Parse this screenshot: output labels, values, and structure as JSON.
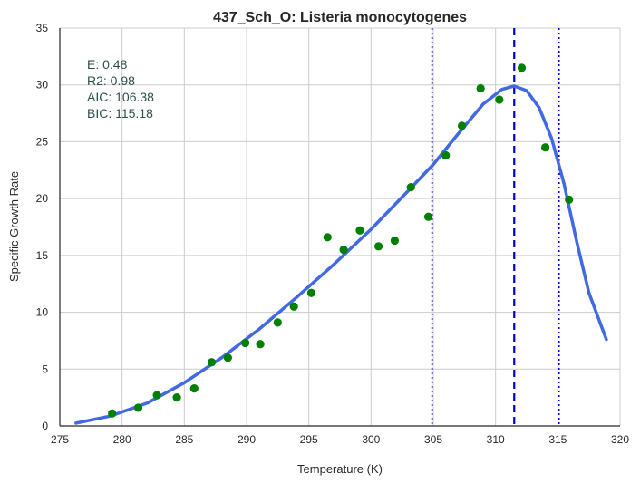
{
  "chart_data": {
    "type": "scatter",
    "title": "437_Sch_O: Listeria monocytogenes",
    "xlabel": "Temperature (K)",
    "ylabel": "Specific Growth Rate",
    "xlim": [
      275,
      320
    ],
    "ylim": [
      0,
      35
    ],
    "xticks": [
      "275",
      "280",
      "285",
      "290",
      "295",
      "300",
      "305",
      "310",
      "315",
      "320"
    ],
    "yticks": [
      "0",
      "5",
      "10",
      "15",
      "20",
      "25",
      "30",
      "35"
    ],
    "grid": true,
    "annotations": [
      "E:  0.48",
      "R2:  0.98",
      "AIC: 106.38",
      "BIC: 115.18"
    ],
    "points": {
      "color": "#008000",
      "x": [
        279.2,
        281.3,
        282.8,
        284.4,
        285.8,
        287.2,
        288.5,
        289.9,
        291.1,
        292.5,
        293.8,
        295.2,
        296.5,
        297.8,
        299.1,
        300.6,
        301.9,
        303.2,
        304.6,
        306.0,
        307.3,
        308.8,
        310.3,
        312.1,
        314.0,
        315.9
      ],
      "y": [
        1.1,
        1.6,
        2.7,
        2.5,
        3.3,
        5.6,
        6.0,
        7.3,
        7.2,
        9.1,
        10.5,
        11.7,
        16.6,
        15.5,
        17.2,
        15.8,
        16.3,
        21.0,
        18.4,
        23.8,
        26.4,
        29.7,
        28.7,
        31.5,
        24.5,
        19.9
      ]
    },
    "fit_curve": {
      "color": "#4169E1",
      "x": [
        276.3,
        279.0,
        282.0,
        285.0,
        288.0,
        291.0,
        294.0,
        297.0,
        300.0,
        303.0,
        305.0,
        307.0,
        309.0,
        310.5,
        311.5,
        312.5,
        313.5,
        314.5,
        315.5,
        316.5,
        317.5,
        318.9
      ],
      "y": [
        0.25,
        0.85,
        2.0,
        3.8,
        6.0,
        8.5,
        11.3,
        14.2,
        17.3,
        20.7,
        23.0,
        25.7,
        28.3,
        29.6,
        29.9,
        29.5,
        28.0,
        25.3,
        21.3,
        16.3,
        11.7,
        7.6
      ]
    },
    "vlines": [
      {
        "x": 311.5,
        "style": "dashed",
        "color": "#0000CD"
      },
      {
        "x": 304.9,
        "style": "dotted",
        "color": "#0000CD"
      },
      {
        "x": 315.1,
        "style": "dotted",
        "color": "#0000CD"
      }
    ],
    "colors": {
      "grid": "#cccccc",
      "axis": "#262626",
      "annotation_text": "#2F4F4F"
    }
  }
}
